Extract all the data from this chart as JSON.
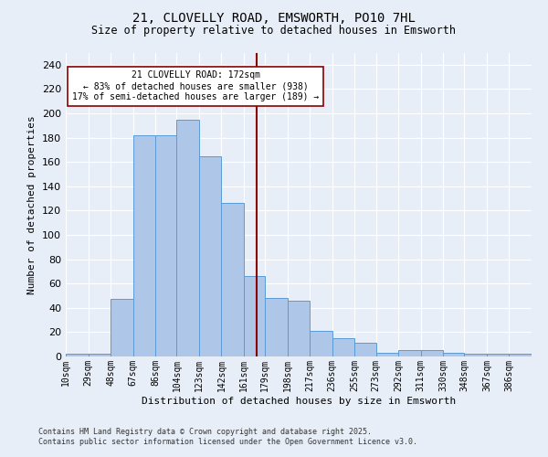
{
  "title_line1": "21, CLOVELLY ROAD, EMSWORTH, PO10 7HL",
  "title_line2": "Size of property relative to detached houses in Emsworth",
  "xlabel": "Distribution of detached houses by size in Emsworth",
  "ylabel": "Number of detached properties",
  "annotation_line1": "21 CLOVELLY ROAD: 172sqm",
  "annotation_line2": "← 83% of detached houses are smaller (938)",
  "annotation_line3": "17% of semi-detached houses are larger (189) →",
  "categories": [
    "10sqm",
    "29sqm",
    "48sqm",
    "67sqm",
    "86sqm",
    "104sqm",
    "123sqm",
    "142sqm",
    "161sqm",
    "179sqm",
    "198sqm",
    "217sqm",
    "236sqm",
    "255sqm",
    "273sqm",
    "292sqm",
    "311sqm",
    "330sqm",
    "348sqm",
    "367sqm",
    "386sqm"
  ],
  "bin_left": [
    10,
    29,
    48,
    67,
    86,
    104,
    123,
    142,
    161,
    179,
    198,
    217,
    236,
    255,
    273,
    292,
    311,
    330,
    348,
    367,
    386
  ],
  "bar_heights": [
    2,
    2,
    47,
    182,
    182,
    195,
    165,
    126,
    66,
    48,
    46,
    21,
    15,
    11,
    3,
    5,
    5,
    3,
    2,
    2,
    2
  ],
  "bar_color": "#aec6e8",
  "bar_edge_color": "#5b9bd5",
  "vline_color": "#8b0000",
  "vline_x": 172,
  "background_color": "#e8eef7",
  "grid_color": "#ffffff",
  "annotation_box_color": "#ffffff",
  "annotation_box_edge_color": "#8b0000",
  "footer_line1": "Contains HM Land Registry data © Crown copyright and database right 2025.",
  "footer_line2": "Contains public sector information licensed under the Open Government Licence v3.0.",
  "ylim": [
    0,
    250
  ],
  "yticks": [
    0,
    20,
    40,
    60,
    80,
    100,
    120,
    140,
    160,
    180,
    200,
    220,
    240
  ],
  "figsize": [
    6.0,
    5.0
  ],
  "dpi": 100
}
